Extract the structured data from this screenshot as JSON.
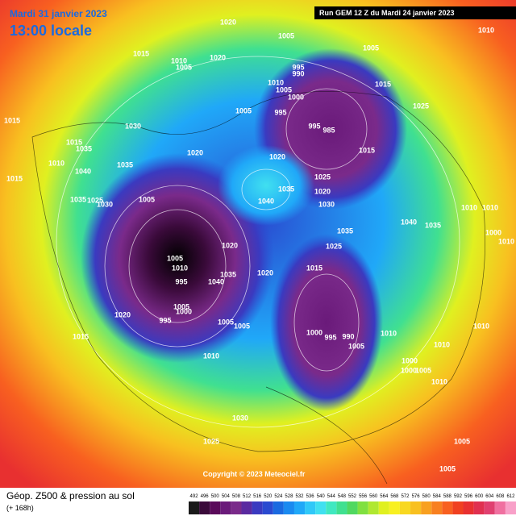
{
  "header": {
    "date": "Mardi 31 janvier 2023",
    "time": "13:00 locale",
    "run": "Run GEM 12 Z du Mardi 24 janvier 2023"
  },
  "footer": {
    "title": "Géop. Z500 & pression au sol",
    "subtitle": "(+ 168h)",
    "copyright": "Copyright © 2023 Meteociel.fr"
  },
  "legend": {
    "labels": [
      "492",
      "496",
      "500",
      "504",
      "508",
      "512",
      "516",
      "520",
      "524",
      "528",
      "532",
      "536",
      "540",
      "544",
      "548",
      "552",
      "556",
      "560",
      "564",
      "568",
      "572",
      "576",
      "580",
      "584",
      "588",
      "592",
      "596",
      "600",
      "604",
      "608",
      "612"
    ],
    "colors": [
      "#1a1a1a",
      "#3a0a3a",
      "#5a0a5a",
      "#6a1a7a",
      "#7a2a8a",
      "#5a2aa0",
      "#3a3ac0",
      "#2a4ad0",
      "#1a6ae0",
      "#1a8af0",
      "#20a8f8",
      "#30c8f8",
      "#40e0f0",
      "#40e8c0",
      "#40e090",
      "#50d860",
      "#80e040",
      "#b0e830",
      "#e0f020",
      "#f8f020",
      "#f8d820",
      "#f8c020",
      "#f8a020",
      "#f88020",
      "#f86020",
      "#f04020",
      "#e83030",
      "#e03050",
      "#e04070",
      "#f070a0",
      "#f8a0c8"
    ]
  },
  "isobar_labels": [
    "1020",
    "1010",
    "1005",
    "1005",
    "1015",
    "1010",
    "1005",
    "1020",
    "995",
    "990",
    "1010",
    "1005",
    "1000",
    "1015",
    "1005",
    "995",
    "1025",
    "995",
    "985",
    "1015",
    "1030",
    "1015",
    "1035",
    "1020",
    "1010",
    "1035",
    "1040",
    "1020",
    "1015",
    "1025",
    "1020",
    "1035",
    "1040",
    "1030",
    "1015",
    "1035",
    "1025",
    "1030",
    "1005",
    "1010",
    "1010",
    "1040",
    "1035",
    "1000",
    "1035",
    "1010",
    "1025",
    "1020",
    "1005",
    "1010",
    "1035",
    "1040",
    "1015",
    "1020",
    "995",
    "1005",
    "1000",
    "995",
    "1020",
    "1005",
    "1005",
    "1015",
    "1000",
    "995",
    "990",
    "1010",
    "1010",
    "1010",
    "1005",
    "1010",
    "1000",
    "1000",
    "1005",
    "1010",
    "1030",
    "1025",
    "1005",
    "1005"
  ]
}
